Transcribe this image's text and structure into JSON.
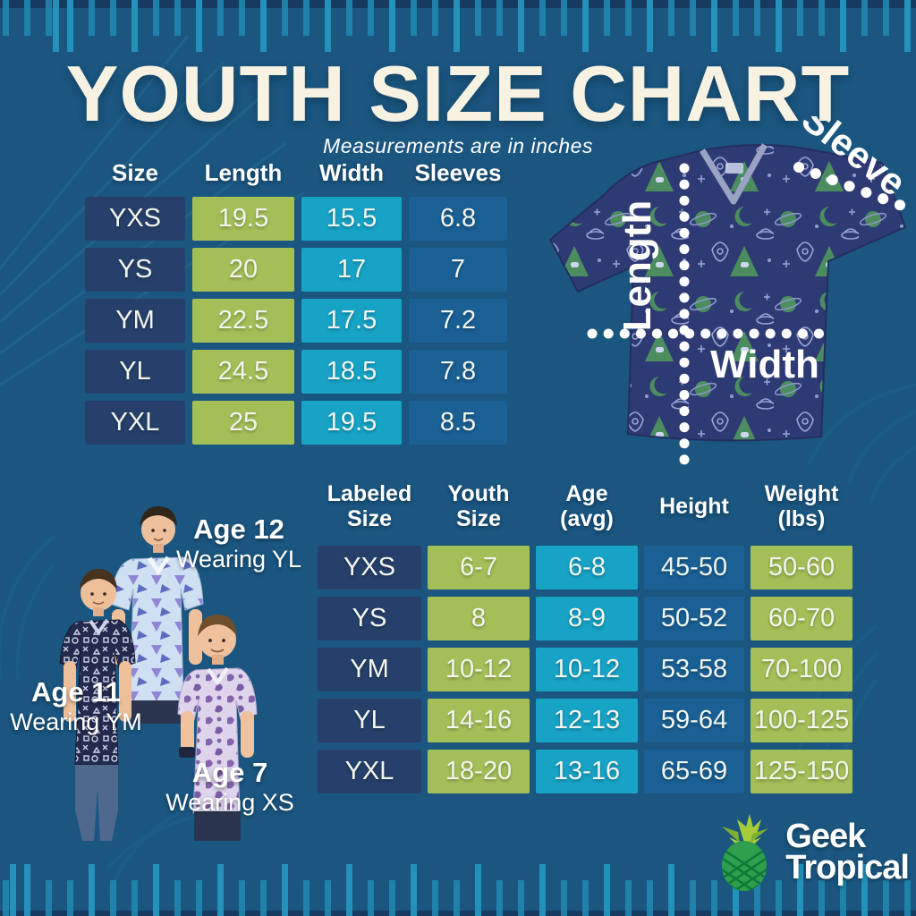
{
  "header": {
    "title": "YOUTH SIZE CHART",
    "subtitle": "Measurements are in inches"
  },
  "measurement_table": {
    "headers": [
      "Size",
      "Length",
      "Width",
      "Sleeves"
    ],
    "rows": [
      [
        "YXS",
        "19.5",
        "15.5",
        "6.8"
      ],
      [
        "YS",
        "20",
        "17",
        "7"
      ],
      [
        "YM",
        "22.5",
        "17.5",
        "7.2"
      ],
      [
        "YL",
        "24.5",
        "18.5",
        "7.8"
      ],
      [
        "YXL",
        "25",
        "19.5",
        "8.5"
      ]
    ],
    "column_colors": [
      "#27406b",
      "#a5bf58",
      "#17a3c6",
      "#1a6095"
    ]
  },
  "fit_table": {
    "headers": [
      "Labeled\nSize",
      "Youth\nSize",
      "Age\n(avg)",
      "Height",
      "Weight\n(lbs)"
    ],
    "rows": [
      [
        "YXS",
        "6-7",
        "6-8",
        "45-50",
        "50-60"
      ],
      [
        "YS",
        "8",
        "8-9",
        "50-52",
        "60-70"
      ],
      [
        "YM",
        "10-12",
        "10-12",
        "53-58",
        "70-100"
      ],
      [
        "YL",
        "14-16",
        "12-13",
        "59-64",
        "100-125"
      ],
      [
        "YXL",
        "18-20",
        "13-16",
        "65-69",
        "125-150"
      ]
    ],
    "column_colors": [
      "#27406b",
      "#a5bf58",
      "#17a3c6",
      "#1a6095",
      "#a5bf58"
    ]
  },
  "diagram": {
    "length_label": "Length",
    "width_label": "Width",
    "sleeve_label": "Sleeve"
  },
  "models": [
    {
      "age": "Age 12",
      "wearing": "Wearing YL"
    },
    {
      "age": "Age 11",
      "wearing": "Wearing YM"
    },
    {
      "age": "Age 7",
      "wearing": "Wearing XS"
    }
  ],
  "brand": {
    "line1": "Geek",
    "line2": "Tropical"
  },
  "colors": {
    "background": "#1a5680",
    "title_cream": "#f8f2e2",
    "navy_cell": "#27406b",
    "green_cell": "#a5bf58",
    "cyan_cell": "#17a3c6",
    "blue_cell": "#1a6095",
    "ruler_tick": "#1e84ac",
    "shirt_navy": "#2e3a73",
    "shirt_motif_green": "#4c8d5f",
    "pineapple_leaf": "#a7cc3a",
    "pineapple_body": "#2f9e4d"
  }
}
